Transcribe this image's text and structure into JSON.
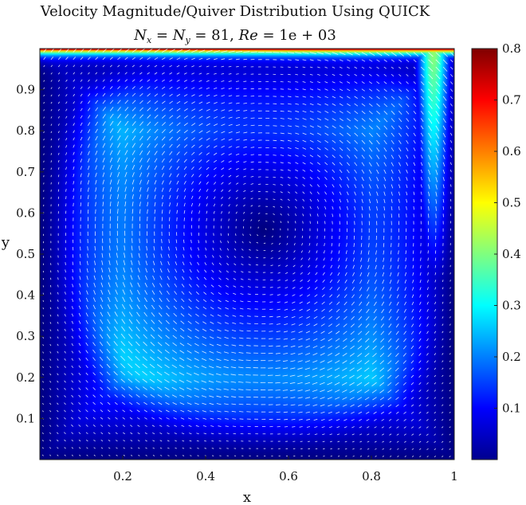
{
  "chart_data": {
    "type": "heatmap",
    "title": "Velocity Magnitude/Quiver Distribution Using QUICK",
    "subtitle": "N_x = N_y = 81, Re = 1e+03",
    "subtitle_parts": {
      "nx_base": "N",
      "nx_sub": "x",
      "eq1": " = ",
      "ny_base": "N",
      "ny_sub": "y",
      "eq2": " = 81, ",
      "re_base": "Re",
      "eq3": " = 1e + 03"
    },
    "xlabel": "x",
    "ylabel": "y",
    "xlim": [
      0,
      1
    ],
    "ylim": [
      0,
      1
    ],
    "x_ticks": [
      0.2,
      0.4,
      0.6,
      0.8,
      1
    ],
    "x_tick_labels": [
      "0.2",
      "0.4",
      "0.6",
      "0.8",
      "1"
    ],
    "y_ticks": [
      0.1,
      0.2,
      0.3,
      0.4,
      0.5,
      0.6,
      0.7,
      0.8,
      0.9
    ],
    "y_tick_labels": [
      "0.1",
      "0.2",
      "0.3",
      "0.4",
      "0.5",
      "0.6",
      "0.7",
      "0.8",
      "0.9"
    ],
    "grid_n": 81,
    "reynolds": 1000,
    "lid_velocity": 1,
    "vortex_center": [
      0.54,
      0.56
    ],
    "colormap": "jet",
    "colorbar": {
      "clim": [
        0,
        0.8
      ],
      "ticks": [
        0.1,
        0.2,
        0.3,
        0.4,
        0.5,
        0.6,
        0.7,
        0.8
      ],
      "tick_labels": [
        "0.1",
        "0.2",
        "0.3",
        "0.4",
        "0.5",
        "0.6",
        "0.7",
        "0.8"
      ],
      "position": "right"
    },
    "quiver_color": "#ffffff",
    "grid": false
  }
}
